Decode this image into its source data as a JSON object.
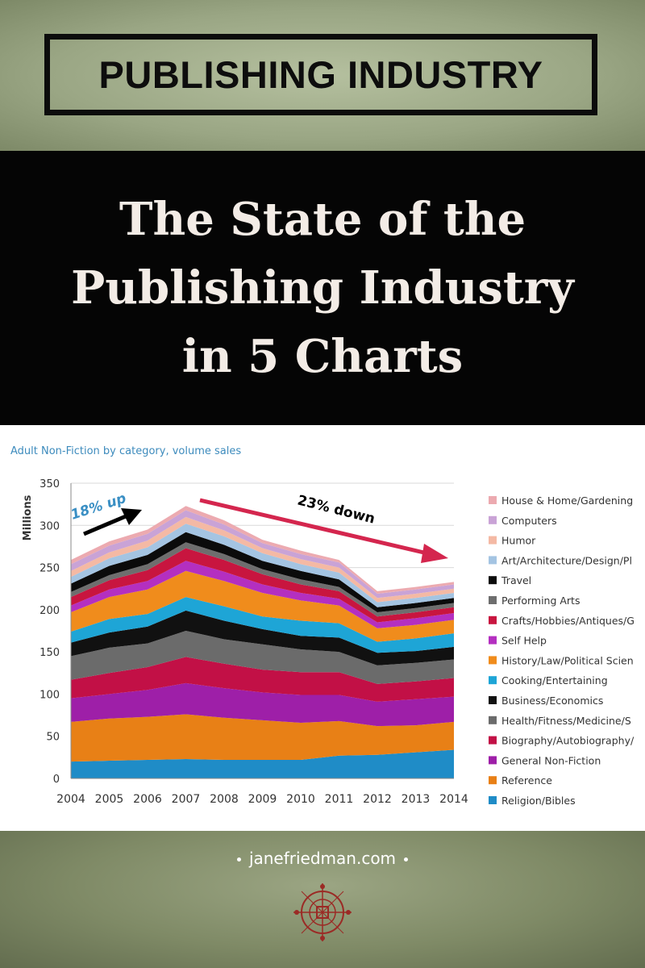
{
  "header": {
    "label": "PUBLISHING INDUSTRY"
  },
  "headline": {
    "line1": "The State of the",
    "line2": "Publishing Industry",
    "line3": "in 5 Charts"
  },
  "footer": {
    "site": "janefriedman.com",
    "emblem_icon": "compass-rose-icon"
  },
  "colors": {
    "band_black": "#050505",
    "olive": "#9aa684",
    "title_blue": "#3d8bbd"
  },
  "chart_data": {
    "type": "area",
    "stacked": true,
    "title": "Adult Non-Fiction by category, volume sales",
    "ylabel": "Millions",
    "xlabel": "",
    "x": [
      "2004",
      "2005",
      "2006",
      "2007",
      "2008",
      "2009",
      "2010",
      "2011",
      "2012",
      "2013",
      "2014"
    ],
    "ylim": [
      0,
      350
    ],
    "yticks": [
      0,
      50,
      100,
      150,
      200,
      250,
      300,
      350
    ],
    "grid": true,
    "legend_position": "right",
    "annotations": [
      {
        "text": "18% up",
        "color": "#3a8fc4",
        "arrow_color": "#000000"
      },
      {
        "text": "23% down",
        "color": "#000000",
        "arrow_color": "#d4264e"
      }
    ],
    "series": [
      {
        "name": "Religion/Bibles",
        "color": "#1f8cc7",
        "values": [
          20,
          21,
          22,
          23,
          22,
          22,
          22,
          27,
          28,
          31,
          34
        ]
      },
      {
        "name": "Reference",
        "color": "#e88016",
        "values": [
          47,
          50,
          51,
          53,
          50,
          47,
          44,
          41,
          34,
          32,
          33
        ]
      },
      {
        "name": "General Non-Fiction",
        "color": "#9e1fa8",
        "values": [
          28,
          29,
          32,
          37,
          35,
          33,
          33,
          31,
          29,
          31,
          30
        ]
      },
      {
        "name": "Biography/Autobiography/",
        "color": "#c21046",
        "values": [
          22,
          25,
          27,
          31,
          29,
          27,
          27,
          27,
          21,
          21,
          22
        ]
      },
      {
        "name": "Health/Fitness/Medicine/S",
        "color": "#6b6b6b",
        "values": [
          28,
          30,
          28,
          31,
          29,
          30,
          27,
          24,
          22,
          22,
          22
        ]
      },
      {
        "name": "Business/Economics",
        "color": "#111111",
        "values": [
          16,
          18,
          20,
          24,
          22,
          18,
          16,
          17,
          15,
          14,
          15
        ]
      },
      {
        "name": "Cooking/Entertaining",
        "color": "#1ea5d6",
        "values": [
          13,
          16,
          15,
          16,
          17,
          15,
          18,
          17,
          13,
          15,
          16
        ]
      },
      {
        "name": "History/Law/Political Scien",
        "color": "#f08c1c",
        "values": [
          23,
          26,
          29,
          31,
          30,
          28,
          24,
          21,
          16,
          16,
          16
        ]
      },
      {
        "name": "Self Help",
        "color": "#b42fc0",
        "values": [
          8,
          9,
          10,
          12,
          11,
          10,
          9,
          8,
          7,
          8,
          8
        ]
      },
      {
        "name": "Crafts/Hobbies/Antiques/G",
        "color": "#c8153f",
        "values": [
          10,
          11,
          13,
          15,
          14,
          12,
          10,
          9,
          7,
          7,
          7
        ]
      },
      {
        "name": "Performing Arts",
        "color": "#6e6e6e",
        "values": [
          6,
          6,
          7,
          7,
          7,
          6,
          6,
          5,
          5,
          5,
          5
        ]
      },
      {
        "name": "Travel",
        "color": "#0b0b0b",
        "values": [
          10,
          11,
          11,
          12,
          11,
          10,
          10,
          9,
          6,
          6,
          6
        ]
      },
      {
        "name": "Art/Architecture/Design/Pl",
        "color": "#a4c4e2",
        "values": [
          8,
          9,
          9,
          10,
          10,
          9,
          8,
          8,
          6,
          6,
          6
        ]
      },
      {
        "name": "Humor",
        "color": "#f4b9a4",
        "values": [
          7,
          7,
          8,
          8,
          7,
          6,
          6,
          6,
          5,
          5,
          5
        ]
      },
      {
        "name": "Computers",
        "color": "#c9a3d6",
        "values": [
          8,
          8,
          8,
          8,
          7,
          6,
          6,
          6,
          5,
          5,
          5
        ]
      },
      {
        "name": "House & Home/Gardening",
        "color": "#ecaab0",
        "values": [
          5,
          5,
          5,
          5,
          5,
          4,
          4,
          3,
          3,
          3,
          3
        ]
      }
    ]
  }
}
